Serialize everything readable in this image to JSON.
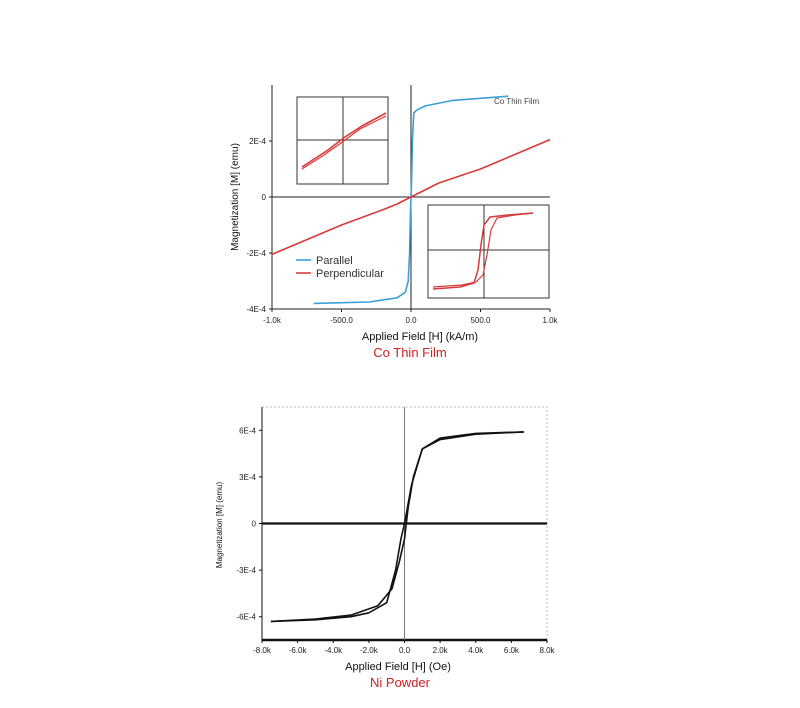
{
  "chart_data": [
    {
      "type": "line",
      "caption": "Co Thin Film",
      "caption_color": "#cc2222",
      "annotation": "Co Thin Film",
      "xlabel": "Applied Field [H] (kA/m)",
      "ylabel": "Magnetization [M] (emu)",
      "xlim": [
        -1000,
        1000
      ],
      "ylim": [
        -0.0004,
        0.0004
      ],
      "xticks": [
        {
          "v": -1000,
          "label": "-1.0k"
        },
        {
          "v": -500,
          "label": "-500.0"
        },
        {
          "v": 0,
          "label": "0.0"
        },
        {
          "v": 500,
          "label": "500.0"
        },
        {
          "v": 1000,
          "label": "1.0k"
        }
      ],
      "yticks": [
        {
          "v": 0.0002,
          "label": "2E-4"
        },
        {
          "v": 0,
          "label": "0"
        },
        {
          "v": -0.0002,
          "label": "-2E-4"
        },
        {
          "v": -0.0004,
          "label": "-4E-4"
        }
      ],
      "legend": {
        "placement": "lower-left"
      },
      "series": [
        {
          "name": "Parallel",
          "color": "#3aa0d8",
          "x": [
            -700,
            -300,
            -100,
            -40,
            -20,
            -10,
            -4,
            0,
            4,
            10,
            20,
            40,
            100,
            300,
            700
          ],
          "y": [
            -0.00038,
            -0.000375,
            -0.00036,
            -0.00034,
            -0.0003,
            -0.0002,
            -6e-05,
            0,
            6e-05,
            0.0002,
            0.0003,
            0.00031,
            0.000325,
            0.000345,
            0.00036
          ]
        },
        {
          "name": "Perpendicular",
          "color": "#d83a3a",
          "x": [
            -1000,
            -500,
            -200,
            -100,
            0,
            100,
            200,
            500,
            1000
          ],
          "y": [
            -0.000205,
            -0.0001,
            -4.5e-05,
            -2.5e-05,
            0,
            2.5e-05,
            5e-05,
            0.0001,
            0.000205
          ]
        }
      ],
      "insets": [
        {
          "position": "upper-left",
          "content": "perpendicular loop, linear"
        },
        {
          "position": "lower-right",
          "content": "parallel loop, square"
        }
      ]
    },
    {
      "type": "line",
      "caption": "Ni Powder",
      "caption_color": "#cc2222",
      "xlabel": "Applied Field [H] (Oe)",
      "ylabel": "Magnetization [M] (emu)",
      "xlim": [
        -8000,
        8000
      ],
      "ylim": [
        -0.00075,
        0.00075
      ],
      "xticks": [
        {
          "v": -8000,
          "label": "-8.0k"
        },
        {
          "v": -6000,
          "label": "-6.0k"
        },
        {
          "v": -4000,
          "label": "-4.0k"
        },
        {
          "v": -2000,
          "label": "-2.0k"
        },
        {
          "v": 0,
          "label": "0.0"
        },
        {
          "v": 2000,
          "label": "2.0k"
        },
        {
          "v": 4000,
          "label": "4.0k"
        },
        {
          "v": 6000,
          "label": "6.0k"
        },
        {
          "v": 8000,
          "label": "8.0k"
        }
      ],
      "yticks": [
        {
          "v": 0.0006,
          "label": "6E-4"
        },
        {
          "v": 0.0003,
          "label": "3E-4"
        },
        {
          "v": 0,
          "label": "0"
        },
        {
          "v": -0.0003,
          "label": "-3E-4"
        },
        {
          "v": -0.0006,
          "label": "-6E-4"
        }
      ],
      "series": [
        {
          "name": "",
          "color": "#111111",
          "x": [
            6700,
            4000,
            2000,
            1000,
            400,
            0,
            -200,
            -500,
            -1000,
            -2000,
            -3000,
            -5000,
            -7500
          ],
          "y": [
            0.00059,
            0.000575,
            0.00054,
            0.00048,
            0.00025,
            0,
            -0.0001,
            -0.0003,
            -0.00051,
            -0.000575,
            -0.0006,
            -0.00062,
            -0.00063
          ]
        },
        {
          "name": "",
          "color": "#111111",
          "x": [
            -7500,
            -5000,
            -3000,
            -1500,
            -700,
            -300,
            0,
            200,
            500,
            1000,
            2000,
            4000,
            6700
          ],
          "y": [
            -0.00063,
            -0.000615,
            -0.00059,
            -0.00053,
            -0.00042,
            -0.00025,
            -0.0001,
            0.0001,
            0.0003,
            0.00048,
            0.00055,
            0.00058,
            0.00059
          ]
        }
      ]
    }
  ]
}
